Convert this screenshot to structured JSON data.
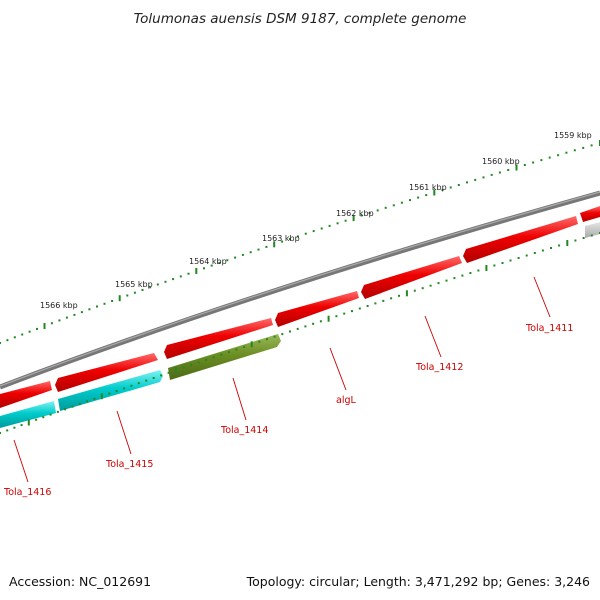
{
  "title": "Tolumonas auensis DSM 9187, complete genome",
  "footer": {
    "accession": "Accession: NC_012691",
    "summary": "Topology: circular; Length: 3,471,292 bp; Genes: 3,246"
  },
  "ruler": {
    "unit": "kbp",
    "ticks": [
      {
        "label": "1559 kbp",
        "kbp": 1559
      },
      {
        "label": "1560 kbp",
        "kbp": 1560
      },
      {
        "label": "1561 kbp",
        "kbp": 1561
      },
      {
        "label": "1562 kbp",
        "kbp": 1562
      },
      {
        "label": "1563 kbp",
        "kbp": 1563
      },
      {
        "label": "1564 kbp",
        "kbp": 1564
      },
      {
        "label": "1565 kbp",
        "kbp": 1565
      },
      {
        "label": "1566 kbp",
        "kbp": 1566
      }
    ]
  },
  "genes": [
    {
      "label": "Tola_1411",
      "strand": "forward"
    },
    {
      "label": "Tola_1412",
      "strand": "forward"
    },
    {
      "label": "algL",
      "strand": "forward"
    },
    {
      "label": "Tola_1414",
      "strand": "reverse"
    },
    {
      "label": "Tola_1415",
      "strand": "reverse"
    },
    {
      "label": "Tola_1416",
      "strand": "reverse"
    }
  ],
  "colors": {
    "forward_gene": "#ee0000",
    "reverse_gene_cyan": "#00cccc",
    "reverse_gene_olive": "#6b8e23",
    "backbone": "#777777",
    "ruler": "#228822",
    "label": "#cc0000"
  }
}
